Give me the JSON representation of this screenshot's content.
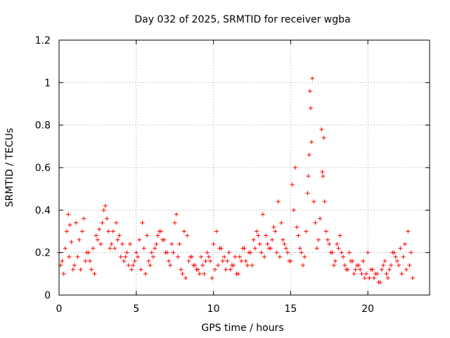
{
  "chart_data": {
    "type": "scatter",
    "title": "Day 032 of 2025, SRMTID for receiver wgba",
    "xlabel": "GPS time / hours",
    "ylabel": "SRMTID / TECUs",
    "xlim": [
      0,
      24
    ],
    "ylim": [
      0,
      1.2
    ],
    "xticks": [
      0,
      5,
      10,
      15,
      20
    ],
    "xtick_labels": [
      "0",
      "5",
      "10",
      "15",
      "20"
    ],
    "yticks": [
      0,
      0.2,
      0.4,
      0.6,
      0.8,
      1.0,
      1.2
    ],
    "ytick_labels": [
      "0",
      "0.2",
      "0.4",
      "0.6",
      "0.8",
      "1",
      "1.2"
    ],
    "grid": true,
    "marker": "+",
    "color": "#ff0000",
    "series": [
      {
        "name": "SRMTID",
        "x": [
          0.0,
          0.2,
          0.4,
          0.5,
          0.6,
          0.7,
          0.8,
          1.0,
          1.2,
          1.4,
          1.5,
          1.6,
          1.8,
          2.0,
          2.2,
          2.4,
          2.5,
          2.6,
          2.8,
          2.9,
          3.0,
          3.1,
          3.2,
          3.4,
          3.6,
          3.8,
          4.0,
          4.2,
          4.4,
          4.6,
          4.8,
          5.0,
          5.2,
          5.4,
          5.6,
          5.8,
          6.0,
          6.2,
          6.4,
          6.6,
          6.8,
          7.0,
          7.2,
          7.4,
          7.5,
          7.6,
          7.8,
          8.0,
          8.2,
          8.4,
          8.6,
          8.8,
          9.0,
          9.2,
          9.4,
          9.6,
          9.8,
          10.0,
          10.2,
          10.4,
          10.6,
          10.8,
          11.0,
          11.2,
          11.4,
          11.6,
          11.8,
          12.0,
          12.2,
          12.4,
          12.6,
          12.8,
          13.0,
          13.2,
          13.4,
          13.6,
          13.8,
          14.0,
          14.2,
          14.4,
          14.6,
          14.8,
          15.0,
          15.2,
          15.3,
          15.4,
          15.6,
          15.8,
          16.0,
          16.1,
          16.2,
          16.3,
          16.4,
          16.6,
          16.8,
          16.9,
          17.0,
          17.1,
          17.2,
          17.4,
          17.6,
          17.8,
          18.0,
          18.2,
          18.4,
          18.6,
          18.8,
          19.0,
          19.2,
          19.4,
          19.6,
          19.8,
          20.0,
          20.2,
          20.4,
          20.6,
          20.8,
          21.0,
          21.2,
          21.4,
          21.6,
          21.8,
          22.0,
          22.2,
          22.4,
          22.6,
          22.8,
          0.1,
          0.3,
          0.65,
          0.9,
          1.1,
          1.3,
          1.7,
          1.9,
          2.1,
          2.3,
          2.7,
          3.3,
          3.5,
          3.7,
          3.9,
          4.1,
          4.3,
          4.5,
          4.7,
          4.9,
          5.1,
          5.3,
          5.5,
          5.7,
          5.9,
          6.1,
          6.3,
          6.5,
          6.7,
          6.9,
          7.1,
          7.3,
          7.7,
          7.9,
          8.1,
          8.3,
          8.5,
          8.7,
          8.9,
          9.1,
          9.3,
          9.5,
          9.7,
          9.9,
          10.1,
          10.3,
          10.5,
          10.7,
          10.9,
          11.1,
          11.3,
          11.5,
          11.7,
          11.9,
          12.1,
          12.3,
          12.5,
          12.7,
          12.9,
          13.1,
          13.3,
          13.5,
          13.7,
          13.9,
          14.1,
          14.3,
          14.5,
          14.7,
          14.9,
          15.1,
          15.5,
          15.7,
          15.9,
          16.15,
          16.25,
          16.35,
          16.5,
          16.7,
          17.05,
          17.15,
          17.3,
          17.5,
          17.7,
          17.9,
          18.1,
          18.3,
          18.5,
          18.7,
          18.9,
          19.1,
          19.3,
          19.5,
          19.7,
          19.9,
          20.1,
          20.3,
          20.5,
          20.7,
          20.9,
          21.1,
          21.3,
          21.5,
          21.7,
          21.9,
          22.1,
          22.3,
          22.5,
          22.7,
          22.9
        ],
        "y": [
          0.2,
          0.16,
          0.22,
          0.3,
          0.38,
          0.33,
          0.25,
          0.14,
          0.18,
          0.12,
          0.3,
          0.36,
          0.2,
          0.16,
          0.22,
          0.28,
          0.26,
          0.31,
          0.34,
          0.4,
          0.42,
          0.36,
          0.3,
          0.24,
          0.22,
          0.26,
          0.18,
          0.16,
          0.2,
          0.24,
          0.14,
          0.2,
          0.26,
          0.34,
          0.1,
          0.16,
          0.2,
          0.22,
          0.28,
          0.3,
          0.26,
          0.2,
          0.14,
          0.2,
          0.34,
          0.38,
          0.24,
          0.1,
          0.08,
          0.16,
          0.18,
          0.14,
          0.12,
          0.18,
          0.1,
          0.2,
          0.16,
          0.24,
          0.3,
          0.22,
          0.16,
          0.12,
          0.2,
          0.14,
          0.18,
          0.1,
          0.16,
          0.22,
          0.14,
          0.2,
          0.26,
          0.3,
          0.24,
          0.38,
          0.28,
          0.22,
          0.26,
          0.3,
          0.44,
          0.34,
          0.24,
          0.2,
          0.16,
          0.4,
          0.6,
          0.32,
          0.22,
          0.14,
          0.3,
          0.48,
          0.66,
          0.88,
          1.02,
          0.34,
          0.26,
          0.36,
          0.78,
          0.56,
          0.44,
          0.26,
          0.2,
          0.14,
          0.24,
          0.28,
          0.18,
          0.12,
          0.2,
          0.16,
          0.12,
          0.14,
          0.1,
          0.08,
          0.2,
          0.12,
          0.08,
          0.1,
          0.06,
          0.14,
          0.1,
          0.12,
          0.2,
          0.18,
          0.14,
          0.1,
          0.24,
          0.3,
          0.2,
          0.14,
          0.1,
          0.18,
          0.12,
          0.34,
          0.26,
          0.16,
          0.2,
          0.12,
          0.1,
          0.24,
          0.22,
          0.3,
          0.34,
          0.28,
          0.24,
          0.18,
          0.14,
          0.12,
          0.16,
          0.18,
          0.12,
          0.22,
          0.28,
          0.14,
          0.18,
          0.24,
          0.3,
          0.26,
          0.2,
          0.16,
          0.24,
          0.18,
          0.12,
          0.3,
          0.28,
          0.18,
          0.14,
          0.12,
          0.1,
          0.14,
          0.16,
          0.18,
          0.08,
          0.12,
          0.14,
          0.22,
          0.18,
          0.16,
          0.12,
          0.14,
          0.1,
          0.18,
          0.22,
          0.16,
          0.2,
          0.14,
          0.22,
          0.28,
          0.2,
          0.18,
          0.24,
          0.22,
          0.32,
          0.2,
          0.18,
          0.26,
          0.22,
          0.16,
          0.52,
          0.28,
          0.2,
          0.18,
          0.56,
          0.96,
          0.72,
          0.44,
          0.22,
          0.58,
          0.74,
          0.3,
          0.24,
          0.2,
          0.16,
          0.22,
          0.2,
          0.14,
          0.12,
          0.16,
          0.1,
          0.14,
          0.12,
          0.16,
          0.1,
          0.08,
          0.12,
          0.1,
          0.06,
          0.12,
          0.16,
          0.08,
          0.14,
          0.2,
          0.16,
          0.22,
          0.18,
          0.12,
          0.14,
          0.08
        ]
      }
    ]
  }
}
